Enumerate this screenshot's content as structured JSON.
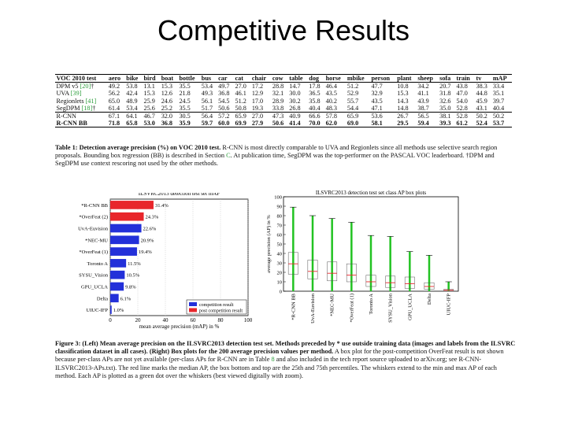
{
  "slide": {
    "title": "Competitive Results"
  },
  "table1": {
    "columns": [
      "VOC 2010 test",
      "aero",
      "bike",
      "bird",
      "boat",
      "bottle",
      "bus",
      "car",
      "cat",
      "chair",
      "cow",
      "table",
      "dog",
      "horse",
      "mbike",
      "person",
      "plant",
      "sheep",
      "sofa",
      "train",
      "tv",
      "mAP"
    ],
    "rows": [
      {
        "method": "DPM v5",
        "cite": "[20]",
        "mark": "†",
        "values": [
          "49.2",
          "53.8",
          "13.1",
          "15.3",
          "35.5",
          "53.4",
          "49.7",
          "27.0",
          "17.2",
          "28.8",
          "14.7",
          "17.8",
          "46.4",
          "51.2",
          "47.7",
          "10.8",
          "34.2",
          "20.7",
          "43.8",
          "38.3",
          "33.4"
        ]
      },
      {
        "method": "UVA",
        "cite": "[39]",
        "mark": "",
        "values": [
          "56.2",
          "42.4",
          "15.3",
          "12.6",
          "21.8",
          "49.3",
          "36.8",
          "46.1",
          "12.9",
          "32.1",
          "30.0",
          "36.5",
          "43.5",
          "52.9",
          "32.9",
          "15.3",
          "41.1",
          "31.8",
          "47.0",
          "44.8",
          "35.1"
        ]
      },
      {
        "method": "Regionlets",
        "cite": "[41]",
        "mark": "",
        "values": [
          "65.0",
          "48.9",
          "25.9",
          "24.6",
          "24.5",
          "56.1",
          "54.5",
          "51.2",
          "17.0",
          "28.9",
          "30.2",
          "35.8",
          "40.2",
          "55.7",
          "43.5",
          "14.3",
          "43.9",
          "32.6",
          "54.0",
          "45.9",
          "39.7"
        ]
      },
      {
        "method": "SegDPM",
        "cite": "[18]",
        "mark": "†",
        "values": [
          "61.4",
          "53.4",
          "25.6",
          "25.2",
          "35.5",
          "51.7",
          "50.6",
          "50.8",
          "19.3",
          "33.8",
          "26.8",
          "40.4",
          "48.3",
          "54.4",
          "47.1",
          "14.8",
          "38.7",
          "35.0",
          "52.8",
          "43.1",
          "40.4"
        ]
      },
      {
        "method": "R-CNN",
        "cite": "",
        "mark": "",
        "values": [
          "67.1",
          "64.1",
          "46.7",
          "32.0",
          "30.5",
          "56.4",
          "57.2",
          "65.9",
          "27.0",
          "47.3",
          "40.9",
          "66.6",
          "57.8",
          "65.9",
          "53.6",
          "26.7",
          "56.5",
          "38.1",
          "52.8",
          "50.2",
          "50.2"
        ]
      },
      {
        "method": "R-CNN BB",
        "cite": "",
        "mark": "",
        "values": [
          "71.8",
          "65.8",
          "53.0",
          "36.8",
          "35.9",
          "59.7",
          "60.0",
          "69.9",
          "27.9",
          "50.6",
          "41.4",
          "70.0",
          "62.0",
          "69.0",
          "58.1",
          "29.5",
          "59.4",
          "39.3",
          "61.2",
          "52.4",
          "53.7"
        ]
      }
    ],
    "caption_label": "Table 1:",
    "caption_bold": "Detection average precision (%) on VOC 2010 test.",
    "caption_a": "R-CNN is most directly comparable to UVA and Regionlets since all methods use selective search region proposals. Bounding box regression (BB) is described in Section",
    "caption_link": "C",
    "caption_b": ". At publication time, SegDPM was the top-performer on the PASCAL VOC leaderboard. †DPM and SegDPM use context rescoring not used by the other methods."
  },
  "figure_left": {
    "chart_data": {
      "type": "bar",
      "title": "ILSVRC2013 detection test set mAP",
      "xlabel": "mean average precision (mAP) in %",
      "xlim": [
        0,
        100
      ],
      "xticks": [
        0,
        20,
        40,
        60,
        80,
        100
      ],
      "categories": [
        "*R-CNN BB",
        "*OverFeat (2)",
        "UvA-Euvision",
        "*NEC-MU",
        "*OverFeat (1)",
        "Toronto A",
        "SYSU_Vision",
        "GPU_UCLA",
        "Delta",
        "UIUC-IFP"
      ],
      "values": [
        31.4,
        24.3,
        22.6,
        20.9,
        19.4,
        11.5,
        10.5,
        9.8,
        6.1,
        1.0
      ],
      "value_labels": [
        "31.4%",
        "24.3%",
        "22.6%",
        "20.9%",
        "19.4%",
        "11.5%",
        "10.5%",
        "9.8%",
        "6.1%",
        "1.0%"
      ],
      "bar_colors": [
        "#e8262b",
        "#e8262b",
        "#2330d9",
        "#2330d9",
        "#2330d9",
        "#2330d9",
        "#2330d9",
        "#2330d9",
        "#2330d9",
        "#2330d9"
      ],
      "legend": [
        {
          "name": "competition result",
          "color": "#2330d9"
        },
        {
          "name": "post competition result",
          "color": "#e8262b"
        }
      ],
      "legend_position": "bottom-right"
    }
  },
  "figure_right": {
    "chart_data": {
      "type": "box",
      "title": "ILSVRC2013 detection test set class AP box plots",
      "ylabel": "average precision (AP) in %",
      "ylim": [
        0,
        100
      ],
      "yticks": [
        0,
        10,
        20,
        30,
        40,
        50,
        60,
        70,
        80,
        90,
        100
      ],
      "categories": [
        "*R-CNN BB",
        "UvA-Euvision",
        "*NEC-MU",
        "*OverFeat (1)",
        "Toronto A",
        "SYSU_Vision",
        "GPU_UCLA",
        "Delta",
        "UIUC-IFP"
      ],
      "whisker_max": [
        89,
        80,
        77,
        73,
        59,
        58,
        42,
        38,
        10
      ],
      "whisker_min": [
        0,
        0,
        0,
        0,
        0,
        0,
        0,
        0,
        0
      ],
      "median": [
        29,
        21,
        19,
        17,
        10,
        9,
        8,
        5,
        1
      ],
      "q1": [
        18,
        13,
        11,
        10,
        5,
        4,
        3,
        2,
        0
      ],
      "q3": [
        41,
        33,
        31,
        29,
        17,
        16,
        15,
        9,
        2
      ],
      "point_color": "#22c322",
      "median_color": "#e8262b"
    }
  },
  "figure_caption": {
    "label": "Figure 3:",
    "bold": "(Left) Mean average precision on the ILSVRC2013 detection test set. Methods preceded by * use outside training data (images and labels from the ILSVRC classification dataset in all cases). (Right) Box plots for the 200 average precision values per method.",
    "a": "A box plot for the post-competition OverFeat result is not shown because per-class APs are not yet available (per-class APs for R-CNN are in Table",
    "link": "8",
    "b": "and also included in the tech report source uploaded to arXiv.org; see R-CNN-ILSVRC2013-APs.txt). The red line marks the median AP, the box bottom and top are the 25th and 75th percentiles. The whiskers extend to the min and max AP of each method. Each AP is plotted as a green dot over the whiskers (best viewed digitally with zoom)."
  }
}
